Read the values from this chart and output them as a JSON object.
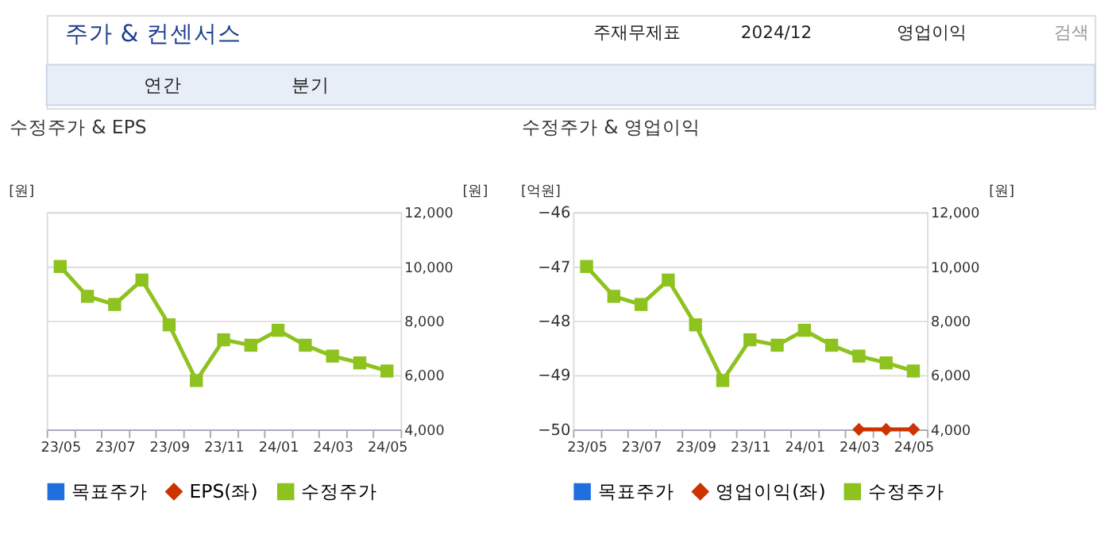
{
  "chart_data": [
    {
      "type": "line",
      "title": "수정주가 & EPS",
      "ylabel": "[원]",
      "y2label": "[원]",
      "annotations": [
        "주가 & 컨센서스",
        "주재무제표",
        "2024/12",
        "영업이익",
        "검색",
        "연간",
        "분기"
      ],
      "categories": [
        "23/05",
        null,
        "23/07",
        null,
        "23/09",
        null,
        "23/11",
        null,
        "24/01",
        null,
        "24/03",
        null,
        "24/05"
      ],
      "series": [
        {
          "name": "목표주가",
          "type": "bar",
          "color": "#1f6fdf",
          "axis": "y2",
          "values": [
            null,
            null,
            null,
            null,
            null,
            null,
            null,
            null,
            null,
            null,
            null,
            null,
            null
          ]
        },
        {
          "name": "EPS(좌)",
          "marker": "diamond",
          "color": "#cc3300",
          "axis": "y",
          "values": [
            null,
            null,
            null,
            null,
            null,
            null,
            null,
            null,
            null,
            null,
            null,
            null,
            null
          ]
        },
        {
          "name": "수정주가",
          "marker": "square",
          "color": "#8dc21f",
          "axis": "y2",
          "values": [
            10000,
            8900,
            8600,
            9500,
            7850,
            5800,
            7300,
            7100,
            7650,
            7100,
            6700,
            6450,
            6150
          ]
        }
      ],
      "y2lim": [
        4000,
        12000
      ],
      "y2ticks": [
        {
          "value": 4000,
          "label": "4,000"
        },
        {
          "value": 6000,
          "label": "6,000"
        },
        {
          "value": 8000,
          "label": "8,000"
        },
        {
          "value": 10000,
          "label": "10,000"
        },
        {
          "value": 12000,
          "label": "12,000"
        }
      ],
      "grid": "y",
      "legend": "bottom",
      "line_style": "solid"
    },
    {
      "type": "line",
      "title": "수정주가 & 영업이익",
      "ylabel": "[억원]",
      "y2label": "[원]",
      "categories": [
        "23/05",
        null,
        "23/07",
        null,
        "23/09",
        null,
        "23/11",
        null,
        "24/01",
        null,
        "24/03",
        null,
        "24/05"
      ],
      "series": [
        {
          "name": "목표주가",
          "type": "bar",
          "color": "#1f6fdf",
          "axis": "y2",
          "values": [
            null,
            null,
            null,
            null,
            null,
            null,
            null,
            null,
            null,
            null,
            null,
            null,
            null
          ]
        },
        {
          "name": "영업이익(좌)",
          "marker": "diamond",
          "color": "#cc3300",
          "axis": "y",
          "values": [
            null,
            null,
            null,
            null,
            null,
            null,
            null,
            null,
            null,
            null,
            -50,
            -50,
            -50
          ]
        },
        {
          "name": "수정주가",
          "marker": "square",
          "color": "#8dc21f",
          "axis": "y2",
          "values": [
            10000,
            8900,
            8600,
            9500,
            7850,
            5800,
            7300,
            7100,
            7650,
            7100,
            6700,
            6450,
            6150
          ]
        }
      ],
      "ylim": [
        -50,
        -46
      ],
      "yticks": [
        -50,
        -49,
        -48,
        -47,
        -46
      ],
      "y2lim": [
        4000,
        12000
      ],
      "y2ticks": [
        {
          "value": 4000,
          "label": "4,000"
        },
        {
          "value": 6000,
          "label": "6,000"
        },
        {
          "value": 8000,
          "label": "8,000"
        },
        {
          "value": 10000,
          "label": "10,000"
        },
        {
          "value": 12000,
          "label": "12,000"
        }
      ],
      "grid": "y",
      "legend": "bottom",
      "line_style": "solid"
    }
  ]
}
